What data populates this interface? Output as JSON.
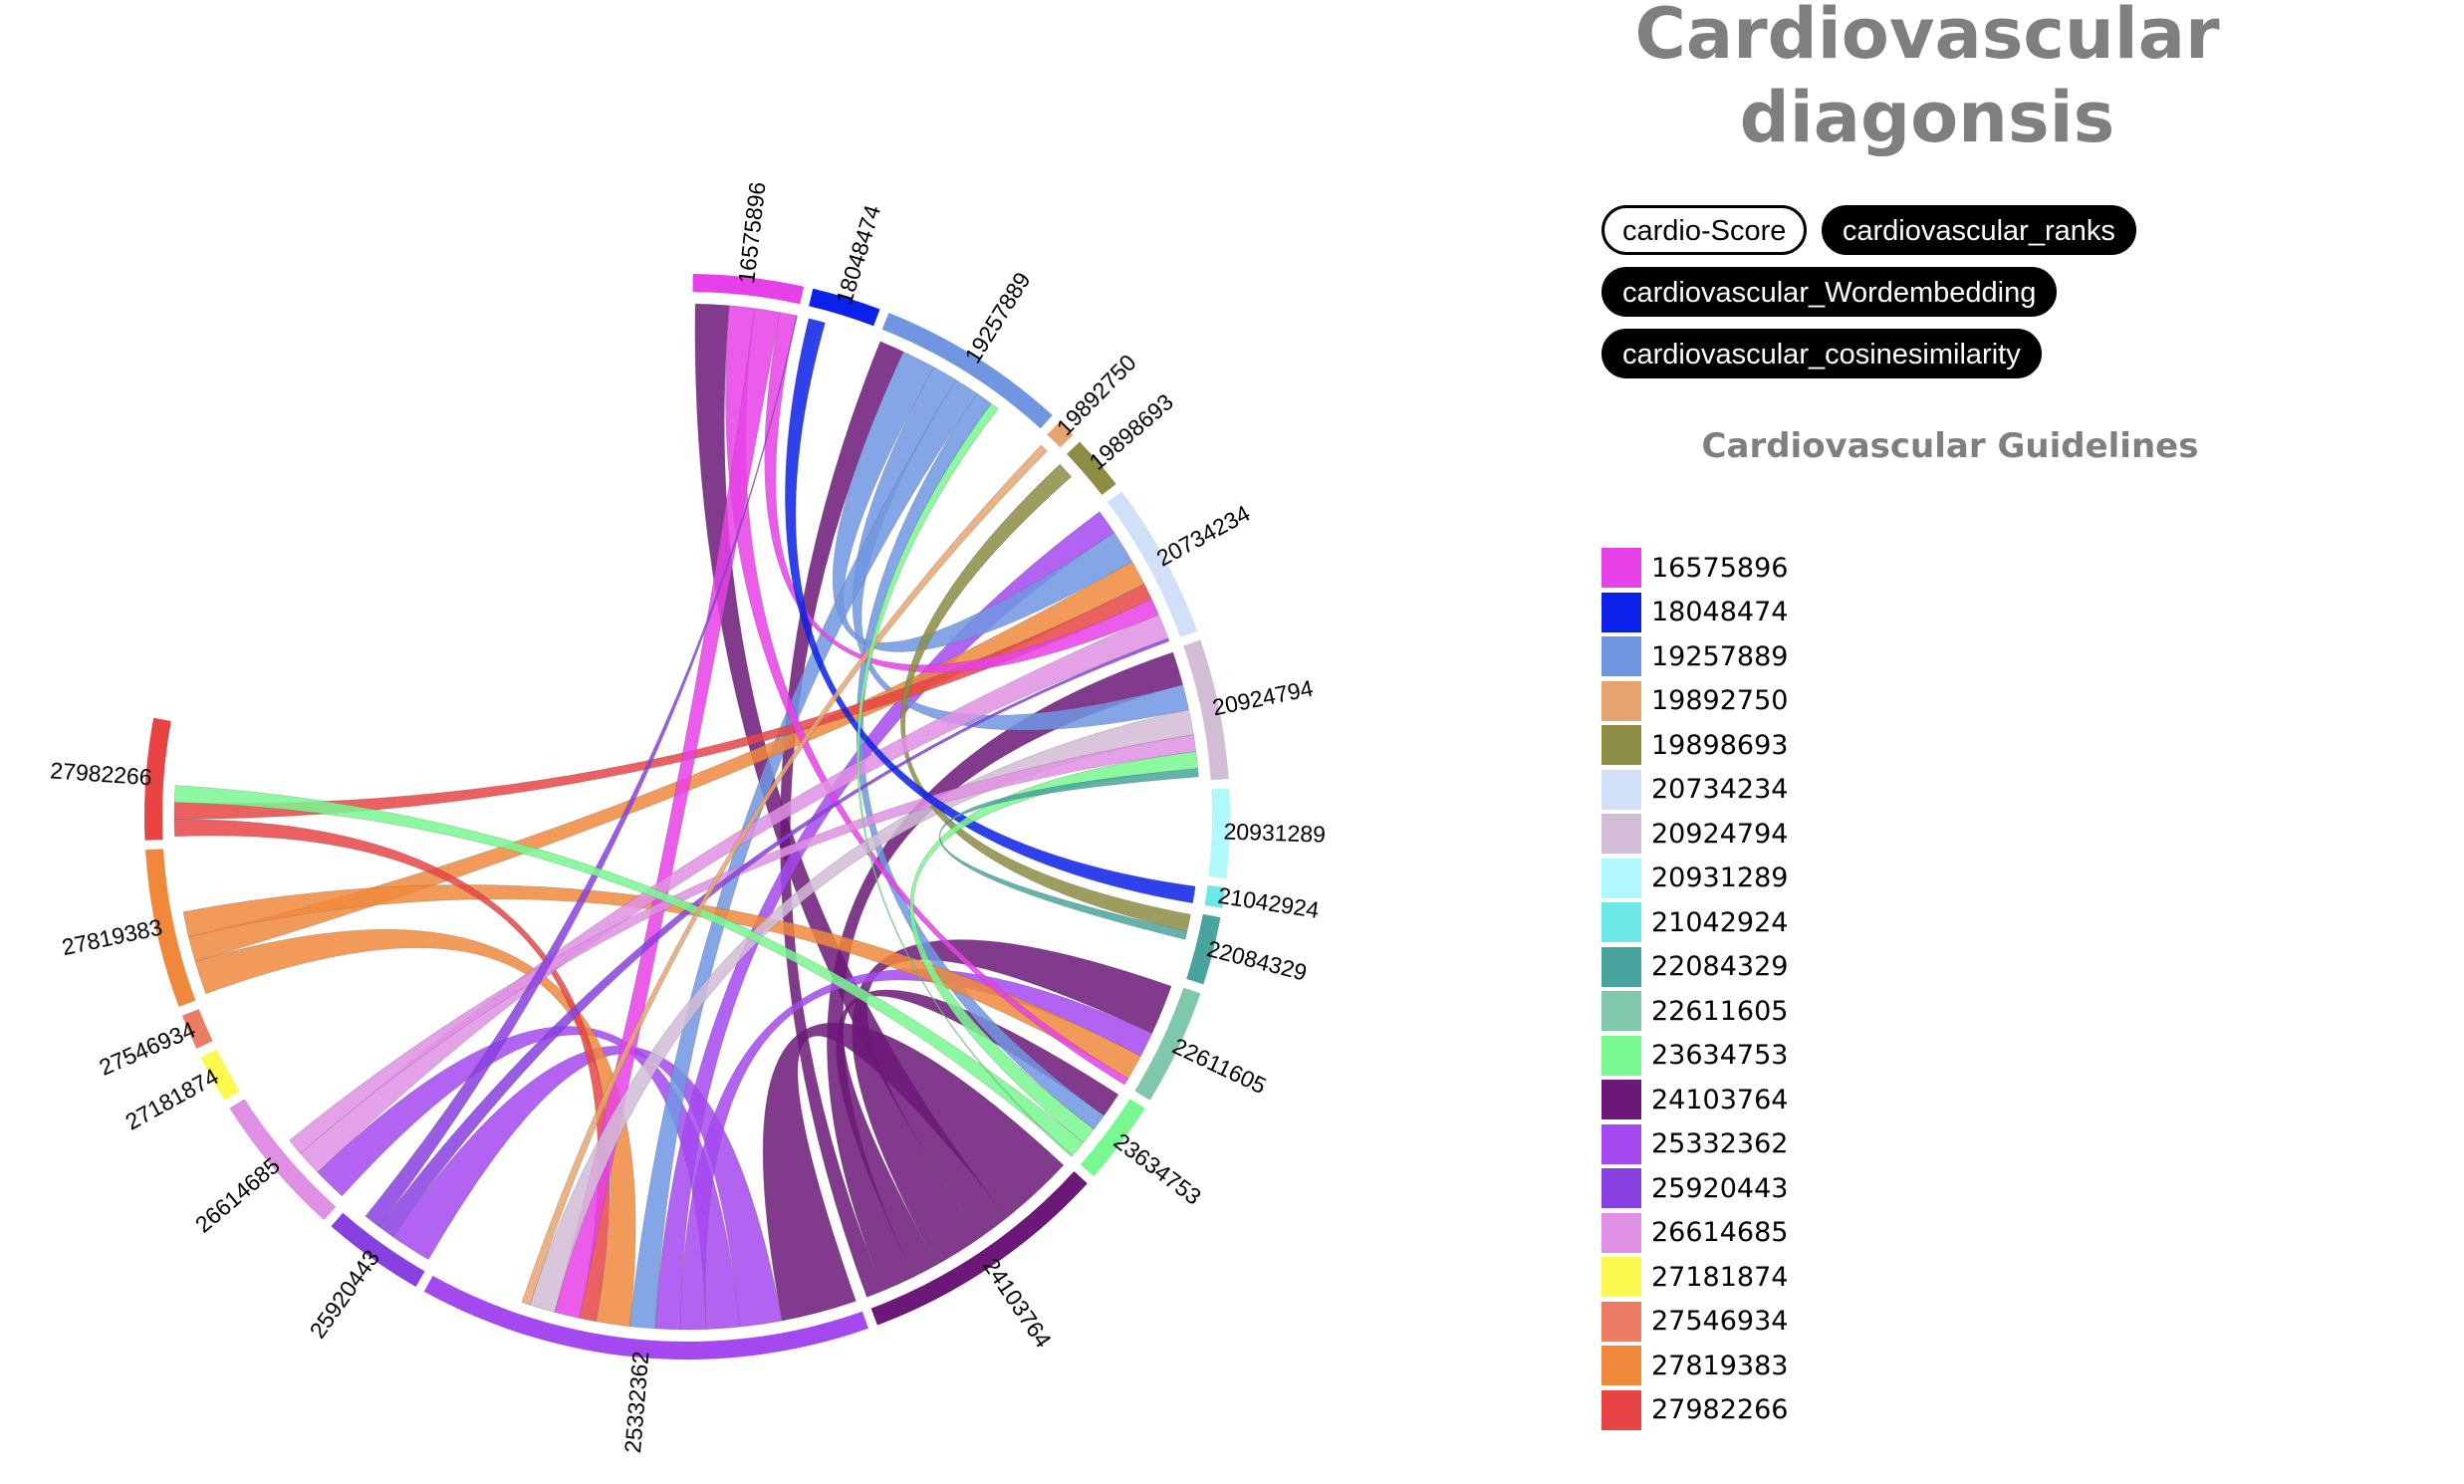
{
  "title": "Cardiovascular diagonsis",
  "buttons": [
    {
      "label": "cardio-Score",
      "active": true
    },
    {
      "label": "cardiovascular_ranks",
      "active": false
    },
    {
      "label": "cardiovascular_Wordembedding",
      "active": false
    },
    {
      "label": "cardiovascular_cosinesimilarity",
      "active": false
    }
  ],
  "legend": {
    "title": "Cardiovascular Guidelines",
    "items": [
      {
        "label": "16575896",
        "color": "#e840e8"
      },
      {
        "label": "18048474",
        "color": "#0b20e8"
      },
      {
        "label": "19257889",
        "color": "#7096e2"
      },
      {
        "label": "19892750",
        "color": "#e8a470"
      },
      {
        "label": "19898693",
        "color": "#8c8c44"
      },
      {
        "label": "20734234",
        "color": "#cfe0f8"
      },
      {
        "label": "20924794",
        "color": "#d2bcd6"
      },
      {
        "label": "20931289",
        "color": "#b0f8fc"
      },
      {
        "label": "21042924",
        "color": "#6ce8e8"
      },
      {
        "label": "22084329",
        "color": "#48a49c"
      },
      {
        "label": "22611605",
        "color": "#80c8ac"
      },
      {
        "label": "23634753",
        "color": "#78f890"
      },
      {
        "label": "24103764",
        "color": "#6c1878"
      },
      {
        "label": "25332362",
        "color": "#a448f0"
      },
      {
        "label": "25920443",
        "color": "#8840e0"
      },
      {
        "label": "26614685",
        "color": "#e090e4"
      },
      {
        "label": "27181874",
        "color": "#fcf850"
      },
      {
        "label": "27546934",
        "color": "#ec7c64"
      },
      {
        "label": "27819383",
        "color": "#f0883c"
      },
      {
        "label": "27982266",
        "color": "#e84444"
      }
    ]
  }
}
